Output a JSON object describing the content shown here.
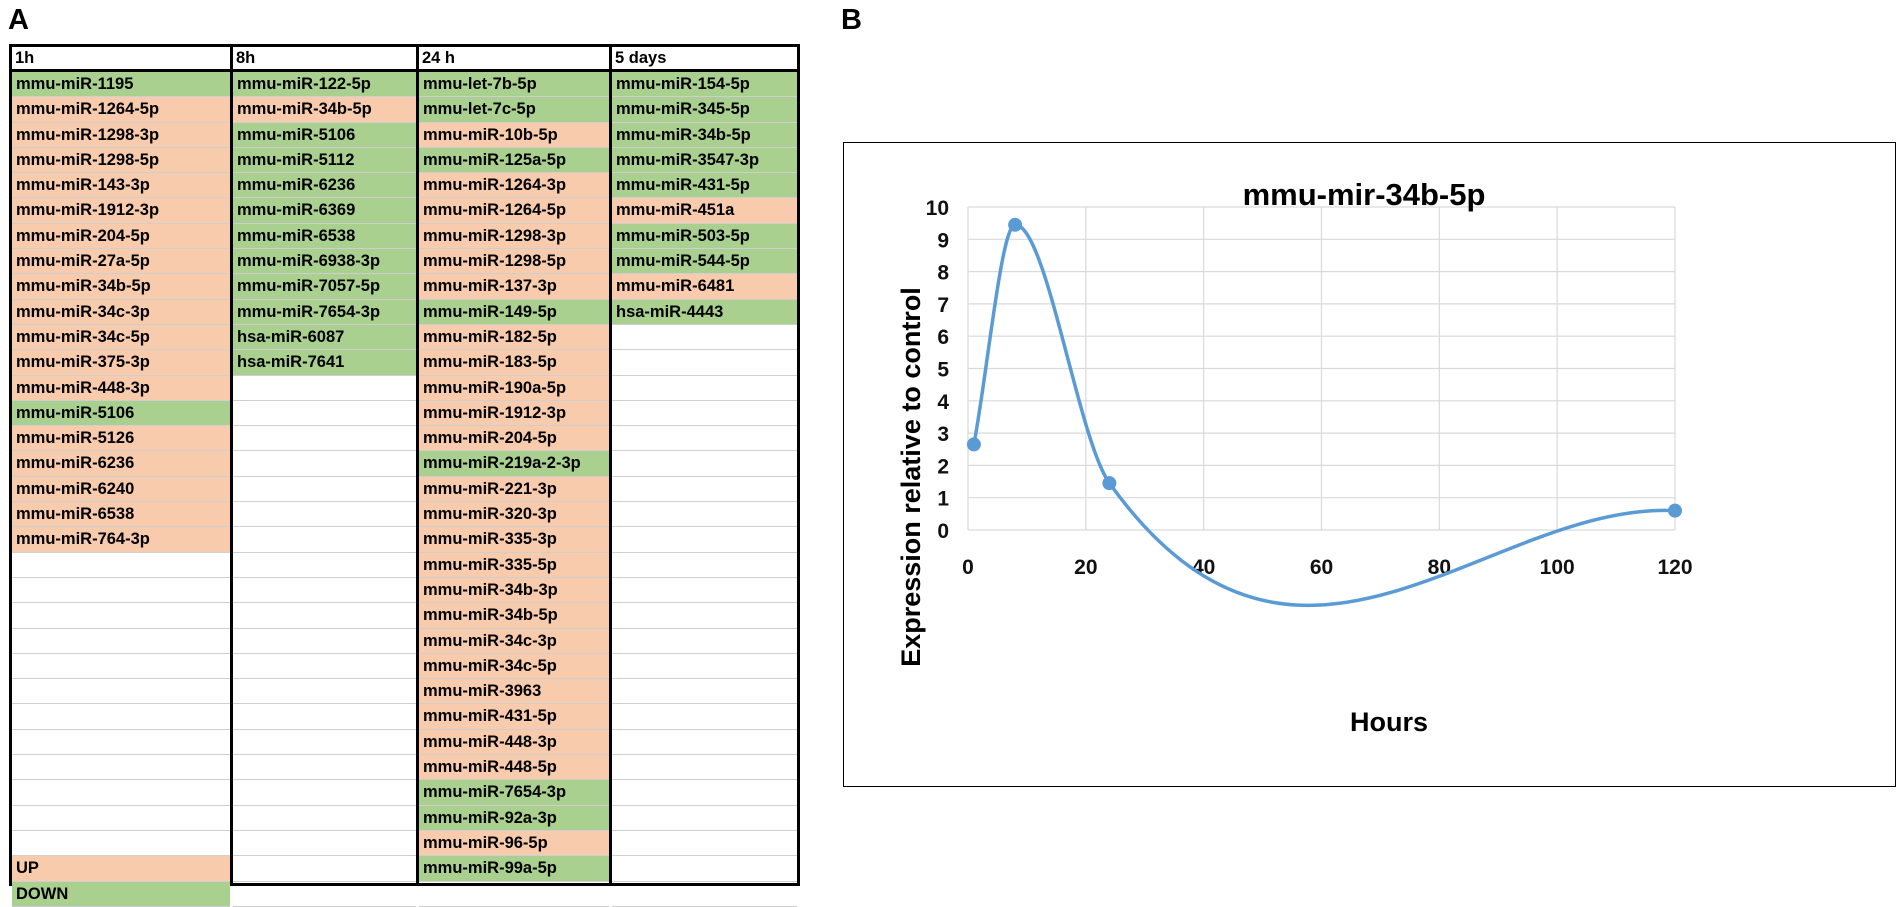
{
  "panel_labels": {
    "a": "A",
    "b": "B"
  },
  "table": {
    "columns": [
      {
        "header": "1h",
        "rows": [
          {
            "label": "mmu-miR-1195",
            "status": "down"
          },
          {
            "label": "mmu-miR-1264-5p",
            "status": "up"
          },
          {
            "label": "mmu-miR-1298-3p",
            "status": "up"
          },
          {
            "label": "mmu-miR-1298-5p",
            "status": "up"
          },
          {
            "label": "mmu-miR-143-3p",
            "status": "up"
          },
          {
            "label": "mmu-miR-1912-3p",
            "status": "up"
          },
          {
            "label": "mmu-miR-204-5p",
            "status": "up"
          },
          {
            "label": "mmu-miR-27a-5p",
            "status": "up"
          },
          {
            "label": "mmu-miR-34b-5p",
            "status": "up"
          },
          {
            "label": "mmu-miR-34c-3p",
            "status": "up"
          },
          {
            "label": "mmu-miR-34c-5p",
            "status": "up"
          },
          {
            "label": "mmu-miR-375-3p",
            "status": "up"
          },
          {
            "label": "mmu-miR-448-3p",
            "status": "up"
          },
          {
            "label": "mmu-miR-5106",
            "status": "down"
          },
          {
            "label": "mmu-miR-5126",
            "status": "up"
          },
          {
            "label": "mmu-miR-6236",
            "status": "up"
          },
          {
            "label": "mmu-miR-6240",
            "status": "up"
          },
          {
            "label": "mmu-miR-6538",
            "status": "up"
          },
          {
            "label": "mmu-miR-764-3p",
            "status": "up"
          },
          {
            "label": "",
            "status": "none"
          },
          {
            "label": "",
            "status": "none"
          },
          {
            "label": "",
            "status": "none"
          },
          {
            "label": "",
            "status": "none"
          },
          {
            "label": "",
            "status": "none"
          },
          {
            "label": "",
            "status": "none"
          },
          {
            "label": "",
            "status": "none"
          },
          {
            "label": "",
            "status": "none"
          },
          {
            "label": "",
            "status": "none"
          },
          {
            "label": "",
            "status": "none"
          },
          {
            "label": "",
            "status": "none"
          },
          {
            "label": "",
            "status": "none"
          },
          {
            "label": "UP",
            "status": "up"
          },
          {
            "label": "DOWN",
            "status": "down"
          }
        ]
      },
      {
        "header": "8h",
        "rows": [
          {
            "label": "mmu-miR-122-5p",
            "status": "down"
          },
          {
            "label": "mmu-miR-34b-5p",
            "status": "up"
          },
          {
            "label": "mmu-miR-5106",
            "status": "down"
          },
          {
            "label": "mmu-miR-5112",
            "status": "down"
          },
          {
            "label": "mmu-miR-6236",
            "status": "down"
          },
          {
            "label": "mmu-miR-6369",
            "status": "down"
          },
          {
            "label": "mmu-miR-6538",
            "status": "down"
          },
          {
            "label": "mmu-miR-6938-3p",
            "status": "down"
          },
          {
            "label": "mmu-miR-7057-5p",
            "status": "down"
          },
          {
            "label": "mmu-miR-7654-3p",
            "status": "down"
          },
          {
            "label": "hsa-miR-6087",
            "status": "down"
          },
          {
            "label": "hsa-miR-7641",
            "status": "down"
          },
          {
            "label": "",
            "status": "none"
          },
          {
            "label": "",
            "status": "none"
          },
          {
            "label": "",
            "status": "none"
          },
          {
            "label": "",
            "status": "none"
          },
          {
            "label": "",
            "status": "none"
          },
          {
            "label": "",
            "status": "none"
          },
          {
            "label": "",
            "status": "none"
          },
          {
            "label": "",
            "status": "none"
          },
          {
            "label": "",
            "status": "none"
          },
          {
            "label": "",
            "status": "none"
          },
          {
            "label": "",
            "status": "none"
          },
          {
            "label": "",
            "status": "none"
          },
          {
            "label": "",
            "status": "none"
          },
          {
            "label": "",
            "status": "none"
          },
          {
            "label": "",
            "status": "none"
          },
          {
            "label": "",
            "status": "none"
          },
          {
            "label": "",
            "status": "none"
          },
          {
            "label": "",
            "status": "none"
          },
          {
            "label": "",
            "status": "none"
          },
          {
            "label": "",
            "status": "none"
          },
          {
            "label": "",
            "status": "none"
          }
        ]
      },
      {
        "header": "24 h",
        "rows": [
          {
            "label": "mmu-let-7b-5p",
            "status": "down"
          },
          {
            "label": "mmu-let-7c-5p",
            "status": "down"
          },
          {
            "label": "mmu-miR-10b-5p",
            "status": "up"
          },
          {
            "label": "mmu-miR-125a-5p",
            "status": "down"
          },
          {
            "label": "mmu-miR-1264-3p",
            "status": "up"
          },
          {
            "label": "mmu-miR-1264-5p",
            "status": "up"
          },
          {
            "label": "mmu-miR-1298-3p",
            "status": "up"
          },
          {
            "label": "mmu-miR-1298-5p",
            "status": "up"
          },
          {
            "label": "mmu-miR-137-3p",
            "status": "up"
          },
          {
            "label": "mmu-miR-149-5p",
            "status": "down"
          },
          {
            "label": "mmu-miR-182-5p",
            "status": "up"
          },
          {
            "label": "mmu-miR-183-5p",
            "status": "up"
          },
          {
            "label": "mmu-miR-190a-5p",
            "status": "up"
          },
          {
            "label": "mmu-miR-1912-3p",
            "status": "up"
          },
          {
            "label": "mmu-miR-204-5p",
            "status": "up"
          },
          {
            "label": "mmu-miR-219a-2-3p",
            "status": "down"
          },
          {
            "label": "mmu-miR-221-3p",
            "status": "up"
          },
          {
            "label": "mmu-miR-320-3p",
            "status": "up"
          },
          {
            "label": "mmu-miR-335-3p",
            "status": "up"
          },
          {
            "label": "mmu-miR-335-5p",
            "status": "up"
          },
          {
            "label": "mmu-miR-34b-3p",
            "status": "up"
          },
          {
            "label": "mmu-miR-34b-5p",
            "status": "up"
          },
          {
            "label": "mmu-miR-34c-3p",
            "status": "up"
          },
          {
            "label": "mmu-miR-34c-5p",
            "status": "up"
          },
          {
            "label": "mmu-miR-3963",
            "status": "up"
          },
          {
            "label": "mmu-miR-431-5p",
            "status": "up"
          },
          {
            "label": "mmu-miR-448-3p",
            "status": "up"
          },
          {
            "label": "mmu-miR-448-5p",
            "status": "up"
          },
          {
            "label": "mmu-miR-7654-3p",
            "status": "down"
          },
          {
            "label": "mmu-miR-92a-3p",
            "status": "down"
          },
          {
            "label": "mmu-miR-96-5p",
            "status": "up"
          },
          {
            "label": "mmu-miR-99a-5p",
            "status": "down"
          },
          {
            "label": "",
            "status": "none"
          }
        ]
      },
      {
        "header": "5 days",
        "rows": [
          {
            "label": "mmu-miR-154-5p",
            "status": "down"
          },
          {
            "label": "mmu-miR-345-5p",
            "status": "down"
          },
          {
            "label": "mmu-miR-34b-5p",
            "status": "down"
          },
          {
            "label": "mmu-miR-3547-3p",
            "status": "down"
          },
          {
            "label": "mmu-miR-431-5p",
            "status": "down"
          },
          {
            "label": "mmu-miR-451a",
            "status": "up"
          },
          {
            "label": "mmu-miR-503-5p",
            "status": "down"
          },
          {
            "label": "mmu-miR-544-5p",
            "status": "down"
          },
          {
            "label": "mmu-miR-6481",
            "status": "up"
          },
          {
            "label": "hsa-miR-4443",
            "status": "down"
          },
          {
            "label": "",
            "status": "none"
          },
          {
            "label": "",
            "status": "none"
          },
          {
            "label": "",
            "status": "none"
          },
          {
            "label": "",
            "status": "none"
          },
          {
            "label": "",
            "status": "none"
          },
          {
            "label": "",
            "status": "none"
          },
          {
            "label": "",
            "status": "none"
          },
          {
            "label": "",
            "status": "none"
          },
          {
            "label": "",
            "status": "none"
          },
          {
            "label": "",
            "status": "none"
          },
          {
            "label": "",
            "status": "none"
          },
          {
            "label": "",
            "status": "none"
          },
          {
            "label": "",
            "status": "none"
          },
          {
            "label": "",
            "status": "none"
          },
          {
            "label": "",
            "status": "none"
          },
          {
            "label": "",
            "status": "none"
          },
          {
            "label": "",
            "status": "none"
          },
          {
            "label": "",
            "status": "none"
          },
          {
            "label": "",
            "status": "none"
          },
          {
            "label": "",
            "status": "none"
          },
          {
            "label": "",
            "status": "none"
          },
          {
            "label": "",
            "status": "none"
          },
          {
            "label": "",
            "status": "none"
          }
        ]
      }
    ]
  },
  "colors": {
    "up": "#f8cbad",
    "down": "#a9d08e",
    "line": "#5b9bd5",
    "grid": "#d9d9d9"
  },
  "chart_data": {
    "type": "line",
    "title": "mmu-mir-34b-5p",
    "xlabel": "Hours",
    "ylabel": "Expression relative to control",
    "x": [
      1,
      8,
      24,
      120
    ],
    "y": [
      2.65,
      9.45,
      1.45,
      0.6
    ],
    "xlim": [
      0,
      120
    ],
    "ylim": [
      0,
      10
    ],
    "xticks": [
      0,
      20,
      40,
      60,
      80,
      100,
      120
    ],
    "yticks": [
      0,
      1,
      2,
      3,
      4,
      5,
      6,
      7,
      8,
      9,
      10
    ],
    "grid": true,
    "smooth": true
  }
}
